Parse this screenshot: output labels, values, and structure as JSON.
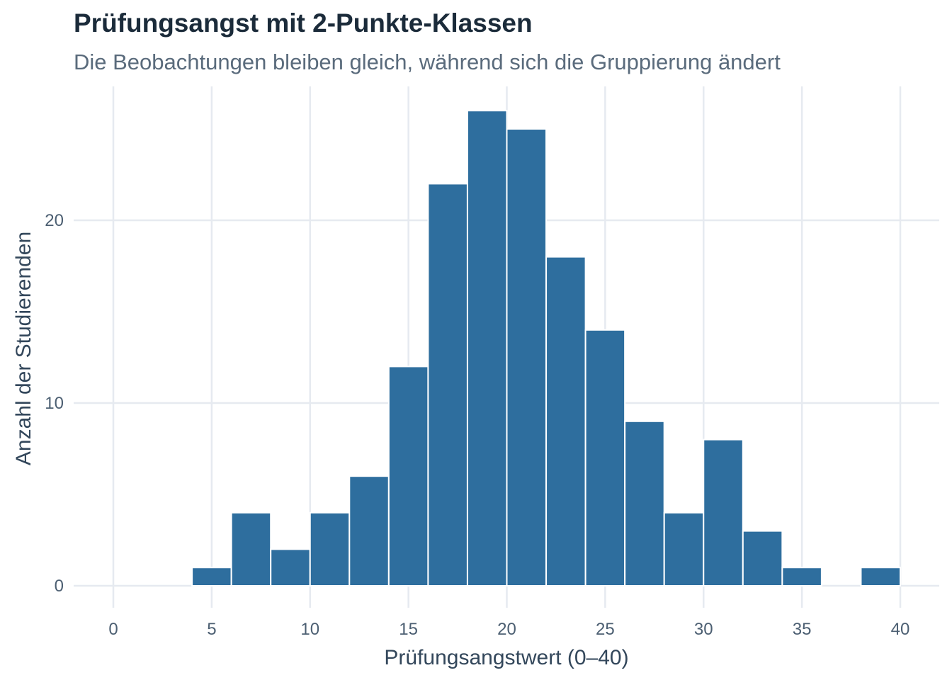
{
  "chart_data": {
    "type": "bar",
    "title": "Prüfungsangst mit 2-Punkte-Klassen",
    "subtitle": "Die Beobachtungen bleiben gleich, während sich die Gruppierung ändert",
    "xlabel": "Prüfungsangstwert (0–40)",
    "ylabel": "Anzahl der Studierenden",
    "xlim": [
      -2,
      42
    ],
    "ylim": [
      0,
      26.5
    ],
    "x_ticks": [
      0,
      5,
      10,
      15,
      20,
      25,
      30,
      35,
      40
    ],
    "y_ticks": [
      0,
      10,
      20
    ],
    "grid": true,
    "bin_width": 2,
    "bins": [
      {
        "start": 4,
        "end": 6,
        "count": 1
      },
      {
        "start": 6,
        "end": 8,
        "count": 4
      },
      {
        "start": 8,
        "end": 10,
        "count": 2
      },
      {
        "start": 10,
        "end": 12,
        "count": 4
      },
      {
        "start": 12,
        "end": 14,
        "count": 6
      },
      {
        "start": 14,
        "end": 16,
        "count": 12
      },
      {
        "start": 16,
        "end": 18,
        "count": 22
      },
      {
        "start": 18,
        "end": 20,
        "count": 26
      },
      {
        "start": 20,
        "end": 22,
        "count": 25
      },
      {
        "start": 22,
        "end": 24,
        "count": 18
      },
      {
        "start": 24,
        "end": 26,
        "count": 14
      },
      {
        "start": 26,
        "end": 28,
        "count": 9
      },
      {
        "start": 28,
        "end": 30,
        "count": 4
      },
      {
        "start": 30,
        "end": 32,
        "count": 8
      },
      {
        "start": 32,
        "end": 34,
        "count": 3
      },
      {
        "start": 34,
        "end": 36,
        "count": 1
      },
      {
        "start": 36,
        "end": 38,
        "count": 0
      },
      {
        "start": 38,
        "end": 40,
        "count": 1
      }
    ],
    "bar_color": "#2e6e9e",
    "grid_color": "#e6eaf0"
  }
}
